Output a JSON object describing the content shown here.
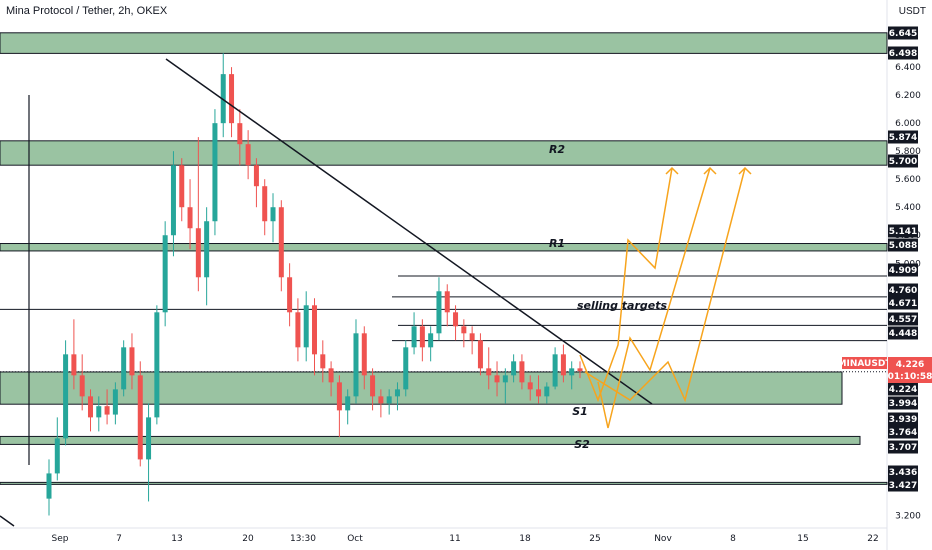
{
  "header": {
    "title": "Mina Protocol / Tether, 2h, OKEX",
    "currency": "USDT"
  },
  "colors": {
    "up": "#26a69a",
    "down": "#ef5350",
    "zone_fill": "#8fbc98",
    "arrow": "#f7a41d",
    "trendline": "#131722",
    "price_badge": "#ef5350",
    "level_badge": "#131722"
  },
  "chart_data": {
    "type": "candlestick",
    "symbol": "MINAUSDT",
    "y_axis_ticks": [
      6.4,
      6.2,
      6.0,
      5.8,
      5.6,
      5.4,
      5.2,
      5.0,
      3.2
    ],
    "x_axis_ticks": [
      "Sep",
      "7",
      "13",
      "20",
      "13:30",
      "Oct",
      "11",
      "18",
      "25",
      "Nov",
      "8",
      "15",
      "22"
    ],
    "zones": [
      {
        "top": 6.645,
        "bottom": 6.498
      },
      {
        "top": 5.874,
        "bottom": 5.7,
        "label": "R2"
      },
      {
        "top": 5.141,
        "bottom": 5.088,
        "label": "R1"
      },
      {
        "top": 4.224,
        "bottom": 3.994,
        "label": "S1"
      },
      {
        "top": 3.764,
        "bottom": 3.707,
        "label": "S2"
      },
      {
        "top": 3.436,
        "bottom": 3.427
      }
    ],
    "selling_target_levels": [
      4.909,
      4.76,
      4.671,
      4.557,
      4.448
    ],
    "level_labels": [
      "6.645",
      "6.498",
      "5.874",
      "5.700",
      "5.141",
      "5.088",
      "4.909",
      "4.760",
      "4.671",
      "4.557",
      "4.448",
      "4.224",
      "3.994",
      "3.939",
      "3.764",
      "3.707",
      "3.436",
      "3.427"
    ],
    "current_price": {
      "symbol": "MINAUSDT",
      "price": "4.226",
      "countdown": "01:10:58"
    },
    "annotations": {
      "selling_targets": "selling targets",
      "r1": "R1",
      "r2": "R2",
      "s1": "S1",
      "s2": "S2"
    },
    "trendline": {
      "from": {
        "x_label": "11 Sep",
        "price": 6.45
      },
      "to": {
        "x_label": "28 Oct",
        "price": 3.99
      }
    },
    "candles": [
      [
        3.32,
        3.6,
        3.2,
        3.5
      ],
      [
        3.5,
        3.9,
        3.45,
        3.75
      ],
      [
        3.75,
        4.45,
        3.7,
        4.35
      ],
      [
        4.35,
        4.6,
        4.1,
        4.2
      ],
      [
        4.2,
        4.35,
        3.95,
        4.05
      ],
      [
        4.05,
        4.1,
        3.8,
        3.9
      ],
      [
        3.9,
        4.05,
        3.8,
        3.98
      ],
      [
        3.98,
        4.1,
        3.85,
        3.92
      ],
      [
        3.92,
        4.15,
        3.85,
        4.1
      ],
      [
        4.1,
        4.45,
        4.05,
        4.4
      ],
      [
        4.4,
        4.5,
        4.1,
        4.2
      ],
      [
        4.2,
        4.3,
        3.55,
        3.6
      ],
      [
        3.6,
        4.0,
        3.3,
        3.9
      ],
      [
        3.9,
        4.7,
        3.85,
        4.65
      ],
      [
        4.65,
        5.3,
        4.55,
        5.2
      ],
      [
        5.2,
        5.8,
        5.05,
        5.7
      ],
      [
        5.7,
        5.75,
        5.3,
        5.4
      ],
      [
        5.4,
        5.6,
        5.1,
        5.25
      ],
      [
        5.25,
        5.9,
        4.8,
        4.9
      ],
      [
        4.9,
        5.4,
        4.7,
        5.3
      ],
      [
        5.3,
        6.1,
        5.2,
        6.0
      ],
      [
        6.0,
        6.5,
        5.9,
        6.35
      ],
      [
        6.35,
        6.4,
        5.9,
        6.0
      ],
      [
        6.0,
        6.1,
        5.7,
        5.85
      ],
      [
        5.85,
        5.95,
        5.6,
        5.7
      ],
      [
        5.7,
        5.75,
        5.4,
        5.55
      ],
      [
        5.55,
        5.6,
        5.2,
        5.3
      ],
      [
        5.3,
        5.5,
        5.15,
        5.4
      ],
      [
        5.4,
        5.45,
        4.8,
        4.9
      ],
      [
        4.9,
        5.0,
        4.55,
        4.65
      ],
      [
        4.65,
        4.75,
        4.3,
        4.4
      ],
      [
        4.4,
        4.8,
        4.3,
        4.7
      ],
      [
        4.7,
        4.75,
        4.2,
        4.35
      ],
      [
        4.35,
        4.45,
        4.15,
        4.25
      ],
      [
        4.25,
        4.3,
        4.05,
        4.15
      ],
      [
        4.15,
        4.2,
        3.76,
        3.95
      ],
      [
        3.95,
        4.1,
        3.85,
        4.05
      ],
      [
        4.05,
        4.6,
        4.0,
        4.5
      ],
      [
        4.5,
        4.55,
        4.1,
        4.2
      ],
      [
        4.2,
        4.25,
        3.95,
        4.05
      ],
      [
        4.05,
        4.1,
        3.9,
        4.0
      ],
      [
        4.0,
        4.1,
        3.92,
        4.05
      ],
      [
        4.05,
        4.15,
        3.95,
        4.1
      ],
      [
        4.1,
        4.45,
        4.05,
        4.4
      ],
      [
        4.4,
        4.65,
        4.35,
        4.55
      ],
      [
        4.55,
        4.6,
        4.3,
        4.4
      ],
      [
        4.4,
        4.55,
        4.3,
        4.5
      ],
      [
        4.5,
        4.9,
        4.45,
        4.8
      ],
      [
        4.8,
        4.85,
        4.55,
        4.65
      ],
      [
        4.65,
        4.7,
        4.45,
        4.55
      ],
      [
        4.55,
        4.6,
        4.4,
        4.5
      ],
      [
        4.5,
        4.55,
        4.35,
        4.45
      ],
      [
        4.45,
        4.5,
        4.2,
        4.25
      ],
      [
        4.25,
        4.4,
        4.1,
        4.2
      ],
      [
        4.2,
        4.3,
        4.05,
        4.15
      ],
      [
        4.15,
        4.25,
        4.0,
        4.2
      ],
      [
        4.2,
        4.35,
        4.15,
        4.3
      ],
      [
        4.3,
        4.35,
        4.1,
        4.15
      ],
      [
        4.15,
        4.2,
        4.02,
        4.1
      ],
      [
        4.1,
        4.2,
        4.0,
        4.05
      ],
      [
        4.05,
        4.15,
        4.0,
        4.12
      ],
      [
        4.12,
        4.4,
        4.1,
        4.35
      ],
      [
        4.35,
        4.42,
        4.15,
        4.2
      ],
      [
        4.2,
        4.3,
        4.1,
        4.25
      ],
      [
        4.25,
        4.3,
        4.18,
        4.23
      ]
    ]
  }
}
